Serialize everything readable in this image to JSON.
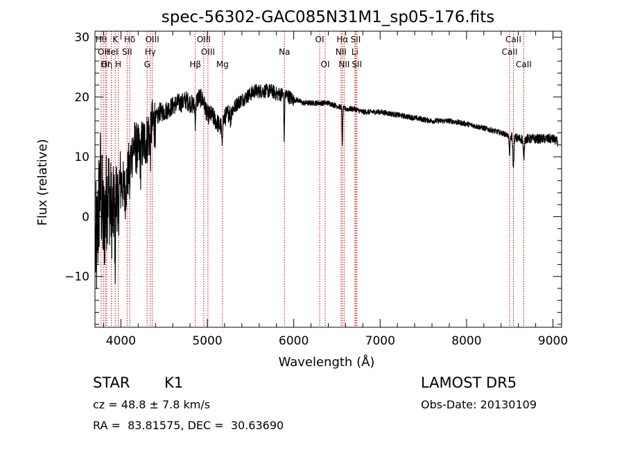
{
  "chart_data": {
    "type": "line",
    "title": "spec-56302-GAC085N31M1_sp05-176.fits",
    "xlabel": "Wavelength (Å)",
    "ylabel": "Flux (relative)",
    "xlim": [
      3700,
      9100
    ],
    "ylim": [
      -18.5,
      31
    ],
    "xticks": [
      4000,
      5000,
      6000,
      7000,
      8000,
      9000
    ],
    "yticks": [
      -10,
      0,
      10,
      20,
      30
    ],
    "grid": false,
    "line_color": "#000000",
    "marker_color": "#cc0000",
    "spectrum_anchors": [
      [
        3720,
        -5
      ],
      [
        3760,
        6
      ],
      [
        3800,
        -2
      ],
      [
        3850,
        5
      ],
      [
        3900,
        0
      ],
      [
        3950,
        4
      ],
      [
        4000,
        6
      ],
      [
        4050,
        4
      ],
      [
        4100,
        9
      ],
      [
        4150,
        12
      ],
      [
        4200,
        11
      ],
      [
        4250,
        12
      ],
      [
        4300,
        13
      ],
      [
        4350,
        15
      ],
      [
        4400,
        16
      ],
      [
        4450,
        17.5
      ],
      [
        4500,
        17.5
      ],
      [
        4550,
        18
      ],
      [
        4600,
        18.5
      ],
      [
        4650,
        19
      ],
      [
        4700,
        19
      ],
      [
        4750,
        19.5
      ],
      [
        4800,
        19
      ],
      [
        4850,
        18.5
      ],
      [
        4900,
        20
      ],
      [
        4950,
        19.5
      ],
      [
        5000,
        17
      ],
      [
        5050,
        17
      ],
      [
        5100,
        16
      ],
      [
        5150,
        15
      ],
      [
        5200,
        16.5
      ],
      [
        5250,
        17.5
      ],
      [
        5300,
        18
      ],
      [
        5350,
        19
      ],
      [
        5400,
        19.5
      ],
      [
        5450,
        20
      ],
      [
        5500,
        20.5
      ],
      [
        5550,
        21
      ],
      [
        5600,
        21
      ],
      [
        5650,
        21
      ],
      [
        5700,
        21
      ],
      [
        5750,
        21
      ],
      [
        5800,
        20.5
      ],
      [
        5850,
        20.5
      ],
      [
        5900,
        20.5
      ],
      [
        5950,
        20
      ],
      [
        6000,
        19.5
      ],
      [
        6050,
        19.5
      ],
      [
        6100,
        19
      ],
      [
        6200,
        19
      ],
      [
        6300,
        19
      ],
      [
        6400,
        19
      ],
      [
        6500,
        18.5
      ],
      [
        6600,
        18
      ],
      [
        6700,
        18
      ],
      [
        6800,
        17.5
      ],
      [
        6900,
        17.5
      ],
      [
        7000,
        17.5
      ],
      [
        7200,
        17
      ],
      [
        7400,
        16.5
      ],
      [
        7600,
        16
      ],
      [
        7800,
        16
      ],
      [
        8000,
        15.5
      ],
      [
        8200,
        14.8
      ],
      [
        8400,
        14
      ],
      [
        8500,
        13.5
      ],
      [
        8600,
        13
      ],
      [
        8700,
        13
      ],
      [
        8800,
        13
      ],
      [
        8900,
        13
      ],
      [
        9000,
        13
      ],
      [
        9050,
        12.5
      ]
    ],
    "absorption_features": [
      [
        3934,
        8
      ],
      [
        3969,
        7
      ],
      [
        4102,
        4
      ],
      [
        4227,
        3
      ],
      [
        4340,
        4
      ],
      [
        4861,
        3
      ],
      [
        5170,
        4
      ],
      [
        5270,
        2
      ],
      [
        5890,
        7
      ],
      [
        6563,
        6
      ],
      [
        8498,
        3
      ],
      [
        8542,
        5
      ],
      [
        8662,
        3.5
      ]
    ],
    "line_markers": [
      {
        "x": 3771,
        "label": "Hθ",
        "row": 1
      },
      {
        "x": 3820,
        "label": "OI",
        "row": 3
      },
      {
        "x": 3835,
        "label": "Hη",
        "row": 3
      },
      {
        "x": 3798,
        "label": "OII",
        "row": 2
      },
      {
        "x": 3889,
        "label": "HeI",
        "row": 2
      },
      {
        "x": 3934,
        "label": "K",
        "row": 1
      },
      {
        "x": 3969,
        "label": "H",
        "row": 3
      },
      {
        "x": 4102,
        "label": "Hδ",
        "row": 1
      },
      {
        "x": 4072,
        "label": "SII",
        "row": 2
      },
      {
        "x": 4340,
        "label": "Hγ",
        "row": 2
      },
      {
        "x": 4304,
        "label": "G",
        "row": 3
      },
      {
        "x": 4363,
        "label": "OIII",
        "row": 1
      },
      {
        "x": 4861,
        "label": "Hβ",
        "row": 3
      },
      {
        "x": 4959,
        "label": "OIII",
        "row": 1
      },
      {
        "x": 5007,
        "label": "OIII",
        "row": 2
      },
      {
        "x": 5175,
        "label": "Mg",
        "row": 3
      },
      {
        "x": 5893,
        "label": "Na",
        "row": 2
      },
      {
        "x": 6300,
        "label": "OI",
        "row": 1
      },
      {
        "x": 6364,
        "label": "OI",
        "row": 3
      },
      {
        "x": 6563,
        "label": "Hα",
        "row": 1
      },
      {
        "x": 6548,
        "label": "NII",
        "row": 2
      },
      {
        "x": 6584,
        "label": "NII",
        "row": 3
      },
      {
        "x": 6717,
        "label": "SII",
        "row": 1
      },
      {
        "x": 6708,
        "label": "Li",
        "row": 2
      },
      {
        "x": 6731,
        "label": "SII",
        "row": 3
      },
      {
        "x": 8498,
        "label": "CaII",
        "row": 2
      },
      {
        "x": 8542,
        "label": "CaII",
        "row": 1
      },
      {
        "x": 8662,
        "label": "CaII",
        "row": 3
      }
    ]
  },
  "info": {
    "object_class": "STAR",
    "subclass": "K1",
    "survey": "LAMOST DR5",
    "cz": "cz = 48.8 ± 7.8 km/s",
    "obs_date": "Obs-Date: 20130109",
    "coords": "RA =  83.81575, DEC =  30.63690"
  }
}
